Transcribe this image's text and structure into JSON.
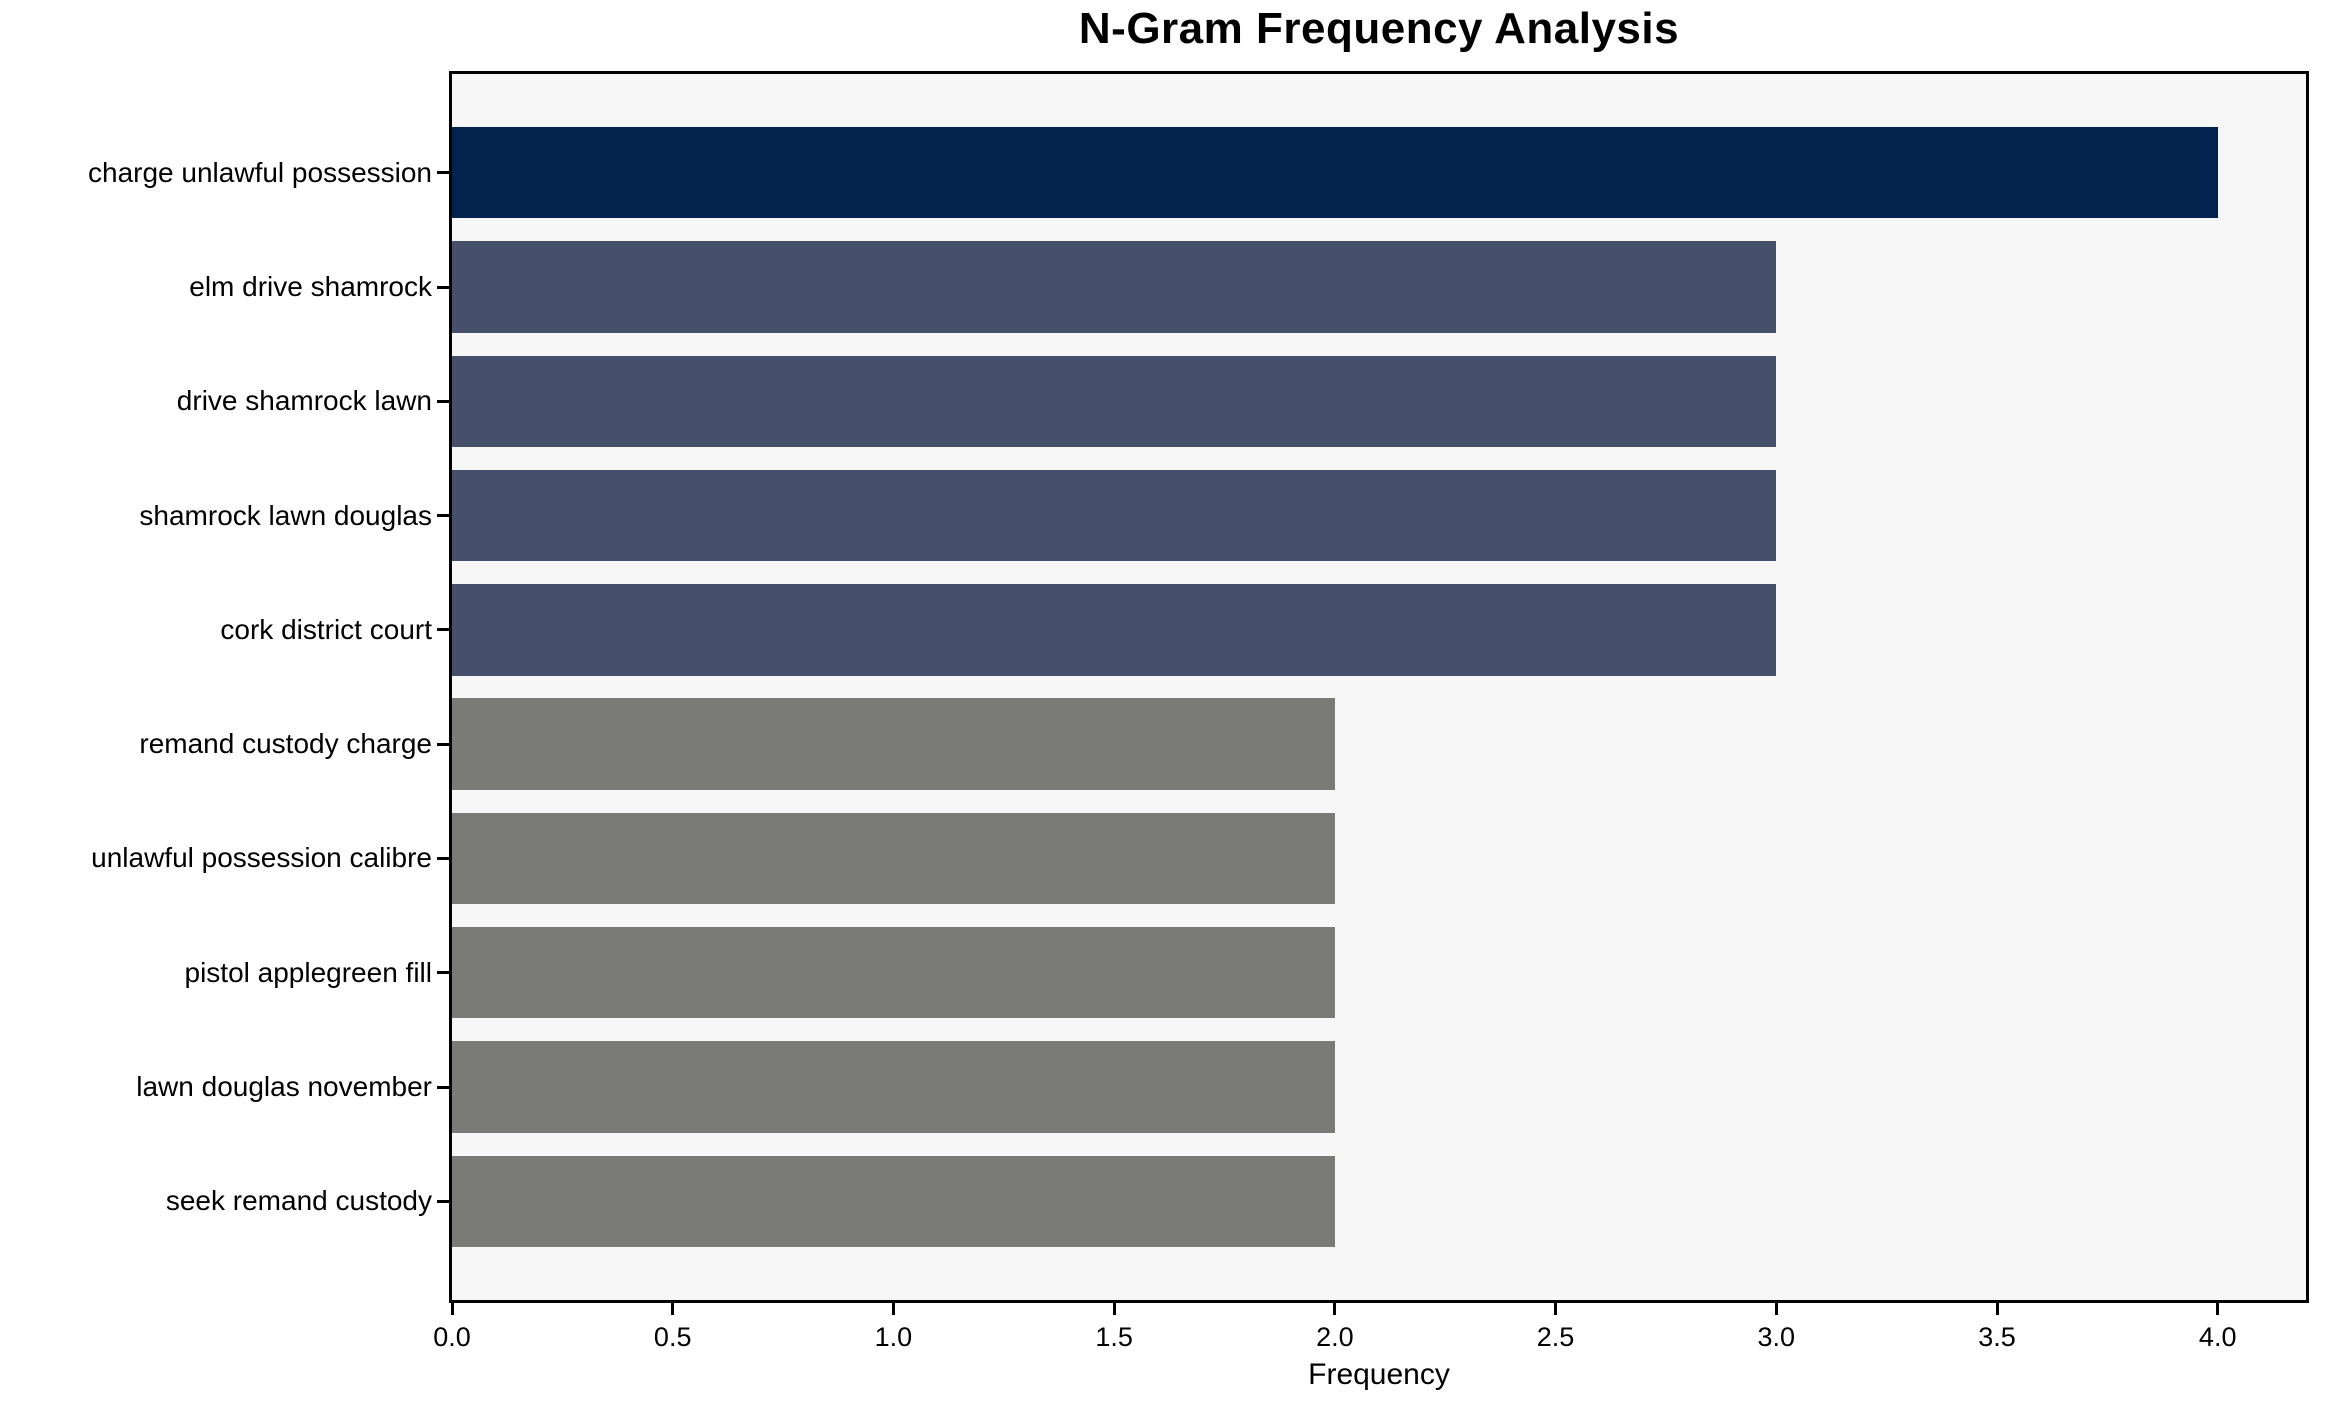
{
  "chart_data": {
    "type": "bar",
    "orientation": "horizontal",
    "title": "N-Gram Frequency Analysis",
    "xlabel": "Frequency",
    "ylabel": "",
    "categories": [
      "charge unlawful possession",
      "elm drive shamrock",
      "drive shamrock lawn",
      "shamrock lawn douglas",
      "cork district court",
      "remand custody charge",
      "unlawful possession calibre",
      "pistol applegreen fill",
      "lawn douglas november",
      "seek remand custody"
    ],
    "values": [
      4,
      3,
      3,
      3,
      3,
      2,
      2,
      2,
      2,
      2
    ],
    "bar_colors": [
      "#02234d",
      "#47506b",
      "#47506b",
      "#47506b",
      "#47506b",
      "#7a7a76",
      "#7a7a76",
      "#7a7a76",
      "#7a7a76",
      "#7a7a76"
    ],
    "xlim": [
      0,
      4.2
    ],
    "xticks": [
      "0.0",
      "0.5",
      "1.0",
      "1.5",
      "2.0",
      "2.5",
      "3.0",
      "3.5",
      "4.0"
    ],
    "grid": false,
    "legend_position": "none",
    "plot_background": "#f7f7f7",
    "figure_background": "#ffffff",
    "spine_color": "#000000"
  }
}
